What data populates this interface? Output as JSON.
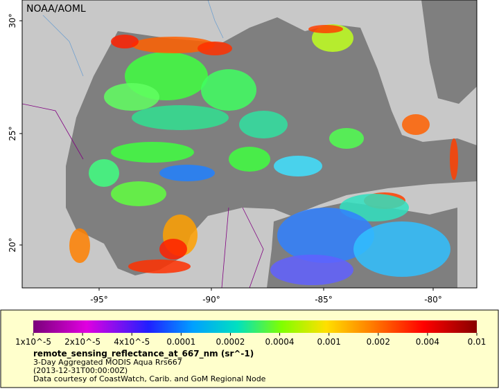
{
  "map": {
    "watermark": "NOAA/AOML",
    "lat_ticks": [
      "30°",
      "25°",
      "20°"
    ],
    "lon_ticks": [
      "-95°",
      "-90°",
      "-85°",
      "-80°"
    ]
  },
  "colorbar": {
    "labels": [
      "1x10^-5",
      "2x10^-5",
      "4x10^-5",
      "0.0001",
      "0.0002",
      "0.0004",
      "0.001",
      "0.002",
      "0.004",
      "0.01"
    ],
    "title": "remote_sensing_reflectance_at_667_nm (sr^-1)",
    "lines": [
      "3-Day Aggregated MODIS Aqua Rrs667",
      "(2013-12-31T00:00:00Z)",
      "Data courtesy of CoastWatch, Carib. and GoM Regional Node"
    ]
  }
}
